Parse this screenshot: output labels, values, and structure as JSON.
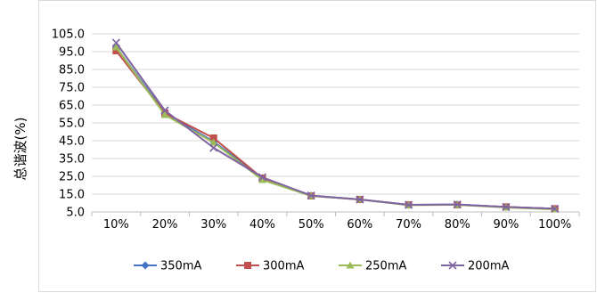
{
  "chart_data": {
    "type": "line",
    "title": "",
    "xlabel": "",
    "ylabel": "总谐波(%)",
    "categories": [
      "10%",
      "20%",
      "30%",
      "40%",
      "50%",
      "60%",
      "70%",
      "80%",
      "90%",
      "100%"
    ],
    "ylim": [
      5.0,
      105.0
    ],
    "yticks": [
      "5.0",
      "15.0",
      "25.0",
      "35.0",
      "45.0",
      "55.0",
      "65.0",
      "75.0",
      "85.0",
      "95.0",
      "105.0"
    ],
    "grid": true,
    "legend_position": "bottom",
    "series": [
      {
        "name": "350mA",
        "color": "#4472C4",
        "marker": "diamond",
        "values": [
          97.5,
          60.5,
          44.5,
          24.0,
          14.2,
          12.0,
          9.0,
          9.2,
          7.8,
          6.8
        ]
      },
      {
        "name": "300mA",
        "color": "#C0504D",
        "marker": "square",
        "values": [
          95.5,
          60.5,
          46.5,
          24.0,
          14.0,
          12.0,
          9.0,
          9.0,
          7.8,
          6.8
        ]
      },
      {
        "name": "250mA",
        "color": "#9BBB59",
        "marker": "triangle",
        "values": [
          97.5,
          59.5,
          44.0,
          23.0,
          14.0,
          12.0,
          8.8,
          9.0,
          7.5,
          6.5
        ]
      },
      {
        "name": "200mA",
        "color": "#8064A2",
        "marker": "x",
        "values": [
          100.0,
          62.0,
          41.0,
          24.5,
          14.2,
          12.0,
          9.0,
          9.2,
          7.8,
          6.8
        ]
      }
    ]
  }
}
